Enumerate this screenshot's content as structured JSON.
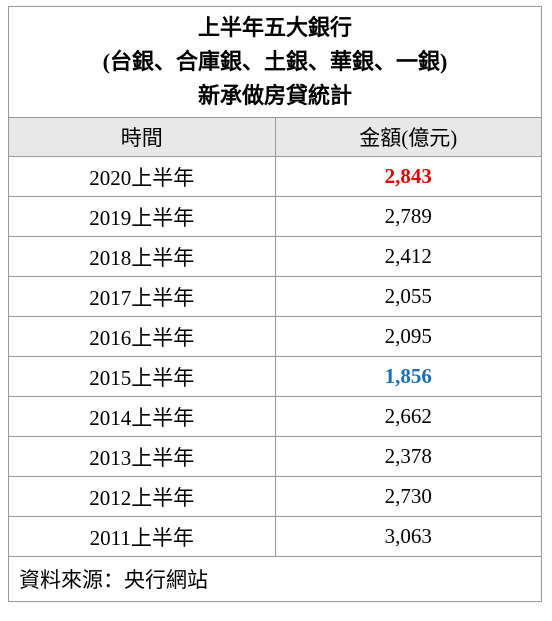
{
  "table": {
    "title": [
      "上半年五大銀行",
      "(台銀、合庫銀、土銀、華銀、一銀)",
      "新承做房貸統計"
    ],
    "header": [
      "時間",
      "金額(億元)"
    ],
    "rows": [
      [
        "2020上半年",
        "2,843"
      ],
      [
        "2019上半年",
        "2,789"
      ],
      [
        "2018上半年",
        "2,412"
      ],
      [
        "2017上半年",
        "2,055"
      ],
      [
        "2016上半年",
        "2,095"
      ],
      [
        "2015上半年",
        "1,856"
      ],
      [
        "2014上半年",
        "2,662"
      ],
      [
        "2013上半年",
        "2,378"
      ],
      [
        "2012上半年",
        "2,730"
      ],
      [
        "2011上半年",
        "3,063"
      ]
    ],
    "source": "資料來源：央行網站"
  }
}
